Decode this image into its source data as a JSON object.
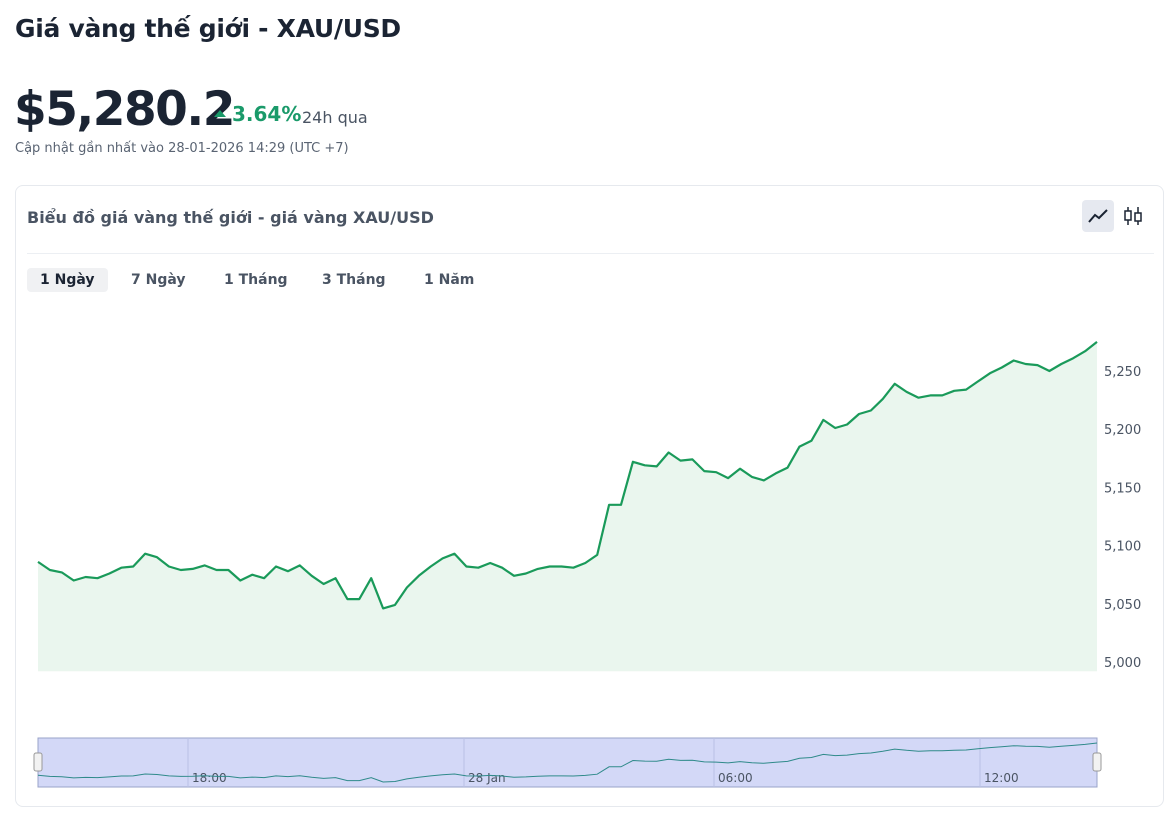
{
  "header": {
    "title": "Giá vàng thế giới - XAU/USD",
    "price": "$5,280.2",
    "change": "3.64%",
    "period": "24h qua",
    "updated": "Cập nhật gần nhất vào 28-01-2026 14:29 (UTC +7)"
  },
  "card": {
    "title": "Biểu đồ giá vàng thế giới - giá vàng XAU/USD",
    "tabs": [
      "1 Ngày",
      "7 Ngày",
      "1 Tháng",
      "3 Tháng",
      "1 Năm"
    ]
  },
  "chart_data": {
    "type": "line",
    "color": "#1a9a5a",
    "area_color": "#eaf6ee",
    "values": [
      5086,
      5079,
      5077,
      5070,
      5073,
      5072,
      5076,
      5081,
      5082,
      5093,
      5090,
      5082,
      5079,
      5080,
      5083,
      5079,
      5079,
      5070,
      5075,
      5072,
      5082,
      5078,
      5083,
      5074,
      5067,
      5072,
      5054,
      5054,
      5072,
      5046,
      5049,
      5064,
      5074,
      5082,
      5089,
      5093,
      5082,
      5081,
      5085,
      5081,
      5074,
      5076,
      5080,
      5082,
      5082,
      5081,
      5085,
      5092,
      5135,
      5135,
      5172,
      5169,
      5168,
      5180,
      5173,
      5174,
      5164,
      5163,
      5158,
      5166,
      5159,
      5156,
      5162,
      5167,
      5185,
      5190,
      5208,
      5201,
      5204,
      5213,
      5216,
      5226,
      5239,
      5232,
      5227,
      5229,
      5229,
      5233,
      5234,
      5241,
      5248,
      5253,
      5259,
      5256,
      5255,
      5250,
      5256,
      5261,
      5267,
      5275
    ],
    "ylim": [
      4992,
      5290
    ],
    "yticks": [
      {
        "value": 5000,
        "label": "5,000"
      },
      {
        "value": 5050,
        "label": "5,050"
      },
      {
        "value": 5100,
        "label": "5,100"
      },
      {
        "value": 5150,
        "label": "5,150"
      },
      {
        "value": 5200,
        "label": "5,200"
      },
      {
        "value": 5250,
        "label": "5,250"
      }
    ],
    "navigator_labels": [
      "18:00",
      "28 Jan",
      "06:00",
      "12:00"
    ]
  }
}
